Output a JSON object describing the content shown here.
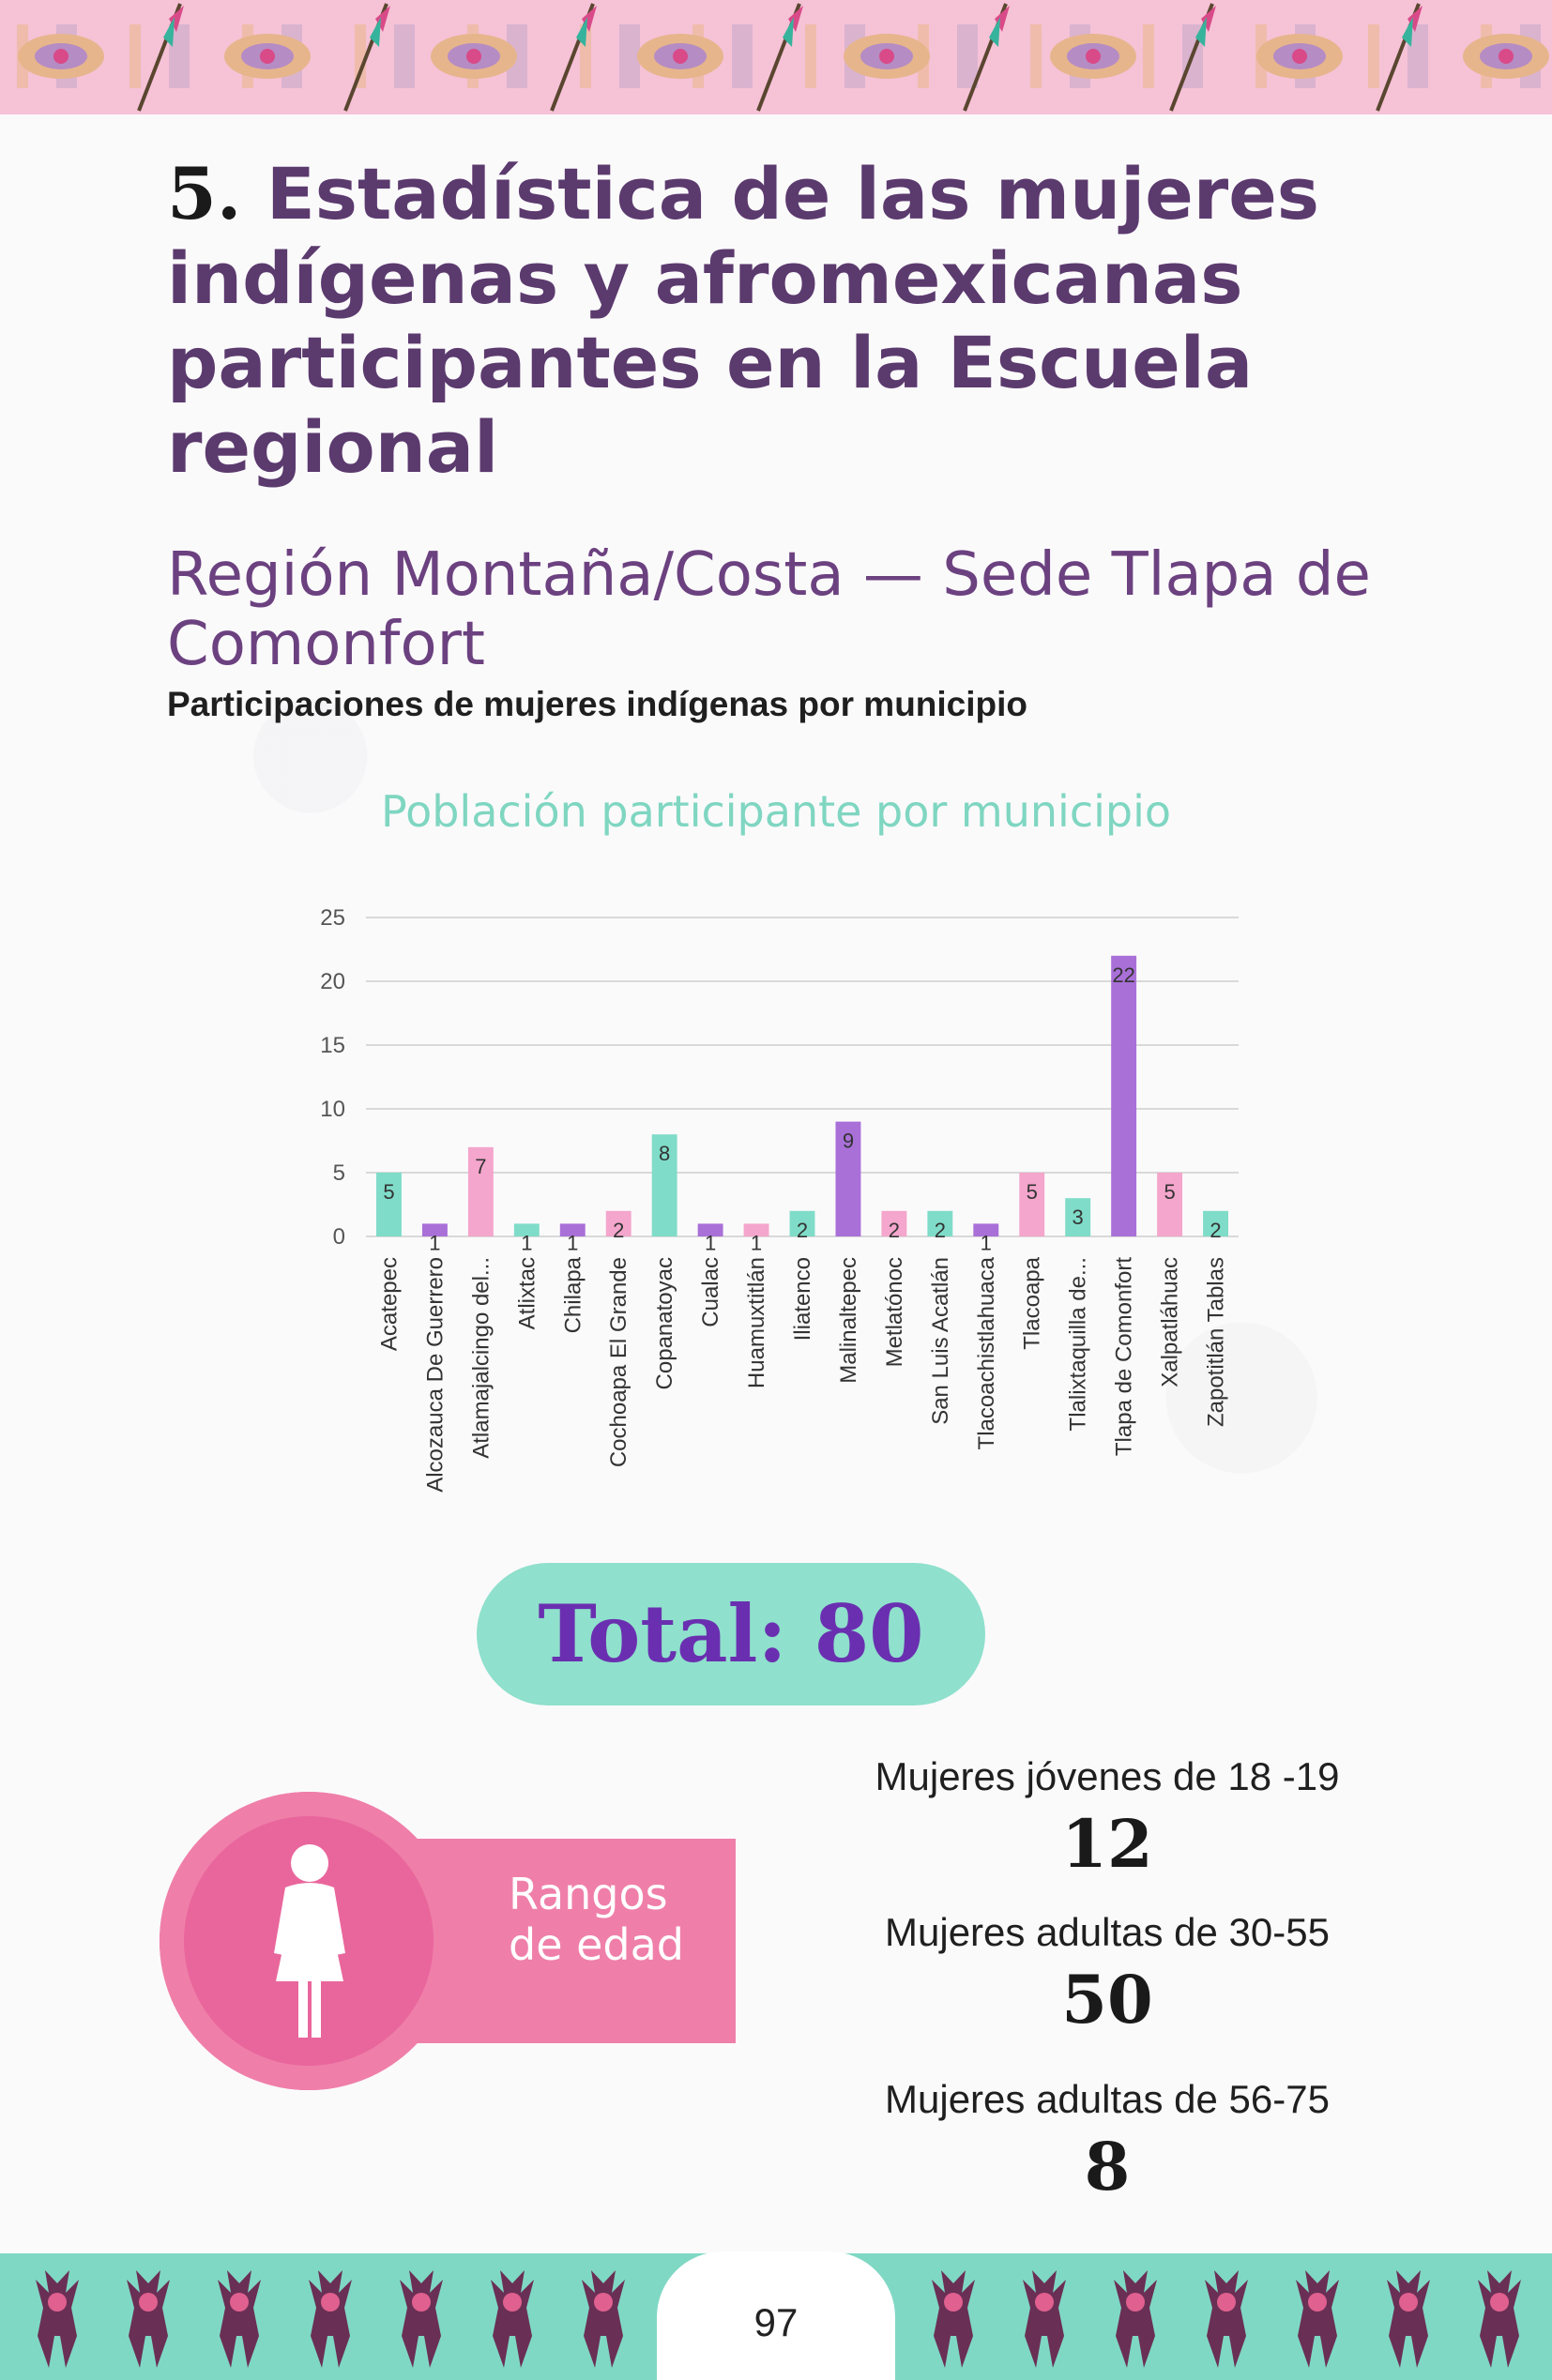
{
  "header": {
    "section_number": "5.",
    "title": "Estadística de las mujeres indígenas y afromexicanas participantes en la Escuela regional",
    "region": "Región Montaña/Costa — Sede Tlapa de Comonfort",
    "subheading": "Participaciones de mujeres indígenas por municipio"
  },
  "chart_data": {
    "type": "bar",
    "title": "Población participante por municipio",
    "xlabel": "",
    "ylabel": "",
    "ylim": [
      0,
      25
    ],
    "yticks": [
      0,
      5,
      10,
      15,
      20,
      25
    ],
    "grid": true,
    "categories": [
      "Acatepec",
      "Alcozauca De Guerrero",
      "Atlamajalcingo del...",
      "Atlixtac",
      "Chilapa",
      "Cochoapa El Grande",
      "Copanatoyac",
      "Cualac",
      "Huamuxtitlán",
      "Iliatenco",
      "Malinaltepec",
      "Metlatónoc",
      "San Luis Acatlán",
      "Tlacoachistlahuaca",
      "Tlacoapa",
      "Tlalixtaquilla de...",
      "Tlapa de Comonfort",
      "Xalpatláhuac",
      "Zapotitlán Tablas"
    ],
    "values": [
      5,
      1,
      7,
      1,
      1,
      2,
      8,
      1,
      1,
      2,
      9,
      2,
      2,
      1,
      5,
      3,
      22,
      5,
      2
    ],
    "colors": [
      "#7fdcc8",
      "#a970d8",
      "#f4a6cc",
      "#7fdcc8",
      "#a970d8",
      "#f4a6cc",
      "#7fdcc8",
      "#a970d8",
      "#f4a6cc",
      "#7fdcc8",
      "#a970d8",
      "#f4a6cc",
      "#7fdcc8",
      "#a970d8",
      "#f4a6cc",
      "#7fdcc8",
      "#a970d8",
      "#f4a6cc",
      "#7fdcc8"
    ]
  },
  "total": {
    "label": "Total: 80"
  },
  "age_ranges": {
    "label": "Rangos de edad",
    "groups": [
      {
        "label": "Mujeres jóvenes de 18 -19",
        "value": "12"
      },
      {
        "label": "Mujeres adultas de 30-55",
        "value": "50"
      },
      {
        "label": "Mujeres adultas de 56-75",
        "value": "8"
      }
    ]
  },
  "footer": {
    "page_number": "97"
  },
  "colors": {
    "title_purple": "#5b3a6e",
    "chart_title_teal": "#7fd6c1",
    "total_bg": "#8fe0cc",
    "total_text": "#6a2fb0",
    "pink": "#ef7fa9",
    "border_pink": "#f6c2d6",
    "border_teal": "#7fd8c4"
  },
  "icons": [
    "woven-pattern-icon",
    "feather-arrow-icon",
    "woman-icon",
    "dancer-figure-icon"
  ]
}
